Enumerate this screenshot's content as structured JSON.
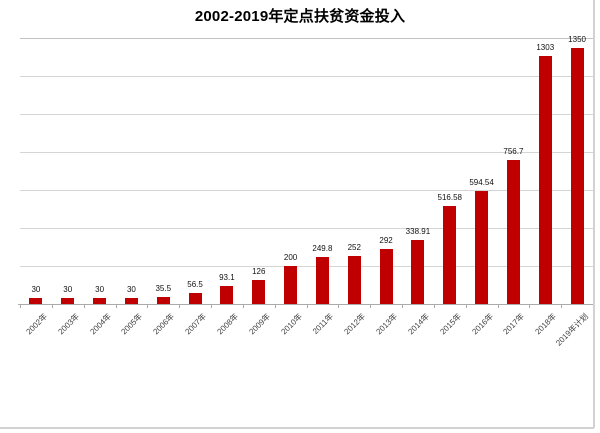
{
  "chart_data": {
    "type": "bar",
    "title": "2002-2019年定点扶贫资金投入",
    "categories": [
      "2002年",
      "2003年",
      "2004年",
      "2005年",
      "2006年",
      "2007年",
      "2008年",
      "2009年",
      "2010年",
      "2011年",
      "2012年",
      "2013年",
      "2014年",
      "2015年",
      "2016年",
      "2017年",
      "2018年",
      "2019年计划"
    ],
    "values": [
      30,
      30,
      30,
      30,
      35.5,
      56.5,
      93.1,
      126,
      200,
      249.8,
      252,
      292,
      338.91,
      516.58,
      594.54,
      756.7,
      1303,
      1350
    ],
    "value_labels": [
      "30",
      "30",
      "30",
      "30",
      "35.5",
      "56.5",
      "93.1",
      "126",
      "200",
      "249.8",
      "252",
      "292",
      "338.91",
      "516.58",
      "594.54",
      "756.7",
      "1303",
      "1350"
    ],
    "xlabel": "",
    "ylabel": "",
    "ylim": [
      0,
      1400
    ],
    "gridline_step": 200,
    "grid": "horizontal gridlines only, no y-axis tick labels",
    "legend_position": "none",
    "bar_color": "#C00000",
    "gridline_color": "#d5d5d5",
    "axis_color": "#ababab",
    "label_color": "#111111",
    "frame_color": "#d2d2d2"
  }
}
